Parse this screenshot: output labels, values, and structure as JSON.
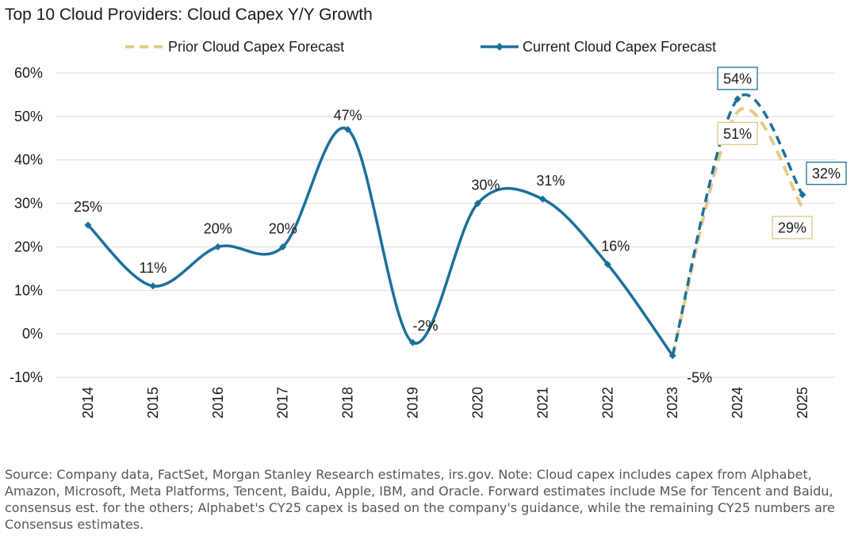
{
  "colors": {
    "current": "#1b6f9b",
    "prior": "#e3cc8a",
    "grid": "#d9d9d9",
    "label_box_current": "#1b6f9b",
    "label_box_prior": "#d8c98a"
  },
  "chart_data": {
    "type": "line",
    "title": "Top 10 Cloud Providers: Cloud Capex Y/Y Growth",
    "categories": [
      "2014",
      "2015",
      "2016",
      "2017",
      "2018",
      "2019",
      "2020",
      "2021",
      "2022",
      "2023",
      "2024",
      "2025"
    ],
    "ylim": [
      -10,
      60
    ],
    "yticks": [
      -10,
      0,
      10,
      20,
      30,
      40,
      50,
      60
    ],
    "ytick_labels": [
      "-10%",
      "0%",
      "10%",
      "20%",
      "30%",
      "40%",
      "50%",
      "60%"
    ],
    "grid": true,
    "legend_position": "top",
    "series": [
      {
        "name": "Prior Cloud Capex Forecast",
        "style": "dashed",
        "start_index": 9,
        "values": [
          null,
          null,
          null,
          null,
          null,
          null,
          null,
          null,
          null,
          -5,
          51,
          29
        ],
        "labels": [
          null,
          null,
          null,
          null,
          null,
          null,
          null,
          null,
          null,
          null,
          "51%",
          "29%"
        ]
      },
      {
        "name": "Current Cloud Capex Forecast",
        "style": "solid-then-dashed",
        "dashed_from_index": 9,
        "values": [
          25,
          11,
          20,
          20,
          47,
          -2,
          30,
          31,
          16,
          -5,
          54,
          32
        ],
        "labels": [
          "25%",
          "11%",
          "20%",
          "20%",
          "47%",
          "-2%",
          "30%",
          "31%",
          "16%",
          "-5%",
          "54%",
          "32%"
        ]
      }
    ]
  },
  "source_note": "Source: Company data, FactSet, Morgan Stanley Research estimates, irs.gov. Note: Cloud capex includes capex from Alphabet, Amazon, Microsoft, Meta Platforms, Tencent, Baidu, Apple, IBM, and Oracle. Forward estimates include MSe for Tencent and Baidu, consensus est. for the others; Alphabet's CY25 capex is based on the company's guidance, while the remaining CY25 numbers are Consensus estimates."
}
